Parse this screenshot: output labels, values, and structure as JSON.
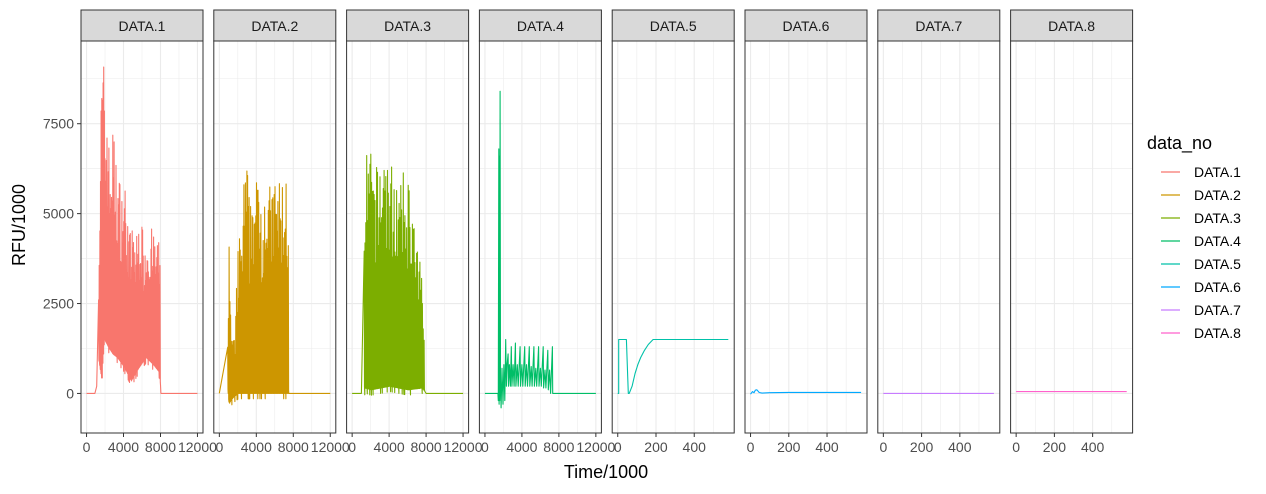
{
  "chart_data": {
    "type": "line",
    "facet": true,
    "xlabel": "Time/1000",
    "ylabel": "RFU/1000",
    "ylim": [
      -1100,
      9800
    ],
    "yticks": [
      0,
      2500,
      5000,
      7500
    ],
    "grid": true,
    "legend": {
      "title": "data_no",
      "position": "right"
    },
    "panels": [
      {
        "name": "DATA.1",
        "color": "#F8766D",
        "xlim": [
          -6000,
          126000
        ],
        "xticks": [
          0,
          40000,
          80000,
          120000
        ],
        "xtick_labels": [
          "0",
          "4000",
          "8000",
          "12000"
        ],
        "mode": "spiky",
        "baseline": [
          [
            0,
            0
          ],
          [
            9000,
            0
          ],
          [
            11000,
            200
          ],
          [
            13000,
            900
          ],
          [
            16000,
            400
          ],
          [
            19000,
            1500
          ],
          [
            23000,
            1300
          ],
          [
            28000,
            1100
          ],
          [
            33000,
            1000
          ],
          [
            40000,
            750
          ],
          [
            48000,
            350
          ],
          [
            56000,
            700
          ],
          [
            64000,
            1000
          ],
          [
            72000,
            800
          ],
          [
            78000,
            600
          ],
          [
            80500,
            0
          ],
          [
            120000,
            0
          ]
        ],
        "upper": [
          [
            13000,
            4000
          ],
          [
            15500,
            7900
          ],
          [
            16200,
            9350
          ],
          [
            19500,
            9350
          ],
          [
            20500,
            7700
          ],
          [
            22000,
            8600
          ],
          [
            25000,
            6500
          ],
          [
            28000,
            7700
          ],
          [
            31000,
            6800
          ],
          [
            34000,
            6300
          ],
          [
            37000,
            5900
          ],
          [
            41000,
            6000
          ],
          [
            44000,
            5400
          ],
          [
            47000,
            4500
          ],
          [
            50000,
            4800
          ],
          [
            54000,
            4400
          ],
          [
            58000,
            5200
          ],
          [
            62000,
            4300
          ],
          [
            66000,
            4700
          ],
          [
            70000,
            4600
          ],
          [
            74000,
            4400
          ],
          [
            78000,
            4250
          ],
          [
            79500,
            4000
          ]
        ],
        "spike_start": 13000,
        "spike_end": 79500,
        "spike_step": 700
      },
      {
        "name": "DATA.2",
        "color": "#CD9600",
        "xlim": [
          -6000,
          126000
        ],
        "xticks": [
          0,
          40000,
          80000,
          120000
        ],
        "xtick_labels": [
          "0",
          "4000",
          "8000",
          "12000"
        ],
        "mode": "spiky",
        "baseline": [
          [
            0,
            0
          ],
          [
            9000,
            0
          ],
          [
            10000,
            -300
          ],
          [
            12000,
            -200
          ],
          [
            15000,
            -100
          ],
          [
            20000,
            0
          ],
          [
            50000,
            0
          ],
          [
            75000,
            0
          ],
          [
            120000,
            0
          ]
        ],
        "upper": [
          [
            9000,
            2000
          ],
          [
            10500,
            5100
          ],
          [
            12000,
            2400
          ],
          [
            14000,
            1600
          ],
          [
            17000,
            1500
          ],
          [
            20000,
            4300
          ],
          [
            24000,
            4500
          ],
          [
            27000,
            6300
          ],
          [
            30000,
            6600
          ],
          [
            33000,
            5200
          ],
          [
            36000,
            6400
          ],
          [
            40000,
            5900
          ],
          [
            43000,
            6800
          ],
          [
            46000,
            5500
          ],
          [
            50000,
            6400
          ],
          [
            54000,
            5800
          ],
          [
            58000,
            5900
          ],
          [
            62000,
            6300
          ],
          [
            66000,
            5900
          ],
          [
            70000,
            6200
          ],
          [
            73000,
            6300
          ],
          [
            75000,
            4200
          ]
        ],
        "spike_start": 9000,
        "spike_end": 75000,
        "spike_step": 800
      },
      {
        "name": "DATA.3",
        "color": "#7CAE00",
        "xlim": [
          -6000,
          126000
        ],
        "xticks": [
          0,
          40000,
          80000,
          120000
        ],
        "xtick_labels": [
          "0",
          "4000",
          "8000",
          "12000"
        ],
        "mode": "spiky",
        "baseline": [
          [
            0,
            0
          ],
          [
            10000,
            0
          ],
          [
            14000,
            150
          ],
          [
            20000,
            100
          ],
          [
            40000,
            200
          ],
          [
            60000,
            100
          ],
          [
            75000,
            150
          ],
          [
            80000,
            0
          ],
          [
            120000,
            0
          ]
        ],
        "upper": [
          [
            13000,
            4200
          ],
          [
            16000,
            6900
          ],
          [
            19000,
            7000
          ],
          [
            22000,
            6500
          ],
          [
            25000,
            6400
          ],
          [
            28000,
            6300
          ],
          [
            32000,
            7000
          ],
          [
            35000,
            7500
          ],
          [
            38000,
            6700
          ],
          [
            41000,
            6200
          ],
          [
            44000,
            6600
          ],
          [
            48000,
            6300
          ],
          [
            51000,
            5500
          ],
          [
            54000,
            6100
          ],
          [
            57000,
            6200
          ],
          [
            60000,
            6100
          ],
          [
            64000,
            6000
          ],
          [
            68000,
            4500
          ],
          [
            71000,
            3900
          ],
          [
            74000,
            3800
          ],
          [
            76000,
            3600
          ],
          [
            78000,
            2500
          ]
        ],
        "spike_start": 13000,
        "spike_end": 78000,
        "spike_step": 900
      },
      {
        "name": "DATA.4",
        "color": "#00BE67",
        "xlim": [
          -6000,
          126000
        ],
        "xticks": [
          0,
          40000,
          80000,
          120000
        ],
        "xtick_labels": [
          "0",
          "4000",
          "8000",
          "12000"
        ],
        "mode": "points",
        "points": [
          [
            0,
            0
          ],
          [
            14000,
            0
          ],
          [
            14500,
            -200
          ],
          [
            15000,
            6800
          ],
          [
            15300,
            -300
          ],
          [
            15700,
            6600
          ],
          [
            16000,
            -200
          ],
          [
            16400,
            8400
          ],
          [
            16800,
            300
          ],
          [
            17500,
            -400
          ],
          [
            18500,
            700
          ],
          [
            19500,
            -300
          ],
          [
            20500,
            800
          ],
          [
            21500,
            -200
          ],
          [
            22500,
            1500
          ],
          [
            23200,
            200
          ],
          [
            24000,
            800
          ],
          [
            25000,
            1100
          ],
          [
            25500,
            200
          ],
          [
            26500,
            800
          ],
          [
            27500,
            200
          ],
          [
            28500,
            1300
          ],
          [
            29200,
            200
          ],
          [
            30500,
            800
          ],
          [
            31500,
            200
          ],
          [
            33000,
            1400
          ],
          [
            33500,
            200
          ],
          [
            35000,
            800
          ],
          [
            36000,
            200
          ],
          [
            38000,
            1300
          ],
          [
            38500,
            200
          ],
          [
            40000,
            800
          ],
          [
            41000,
            200
          ],
          [
            43000,
            1300
          ],
          [
            43500,
            200
          ],
          [
            45000,
            800
          ],
          [
            46000,
            200
          ],
          [
            48000,
            1300
          ],
          [
            48500,
            200
          ],
          [
            50000,
            750
          ],
          [
            51000,
            200
          ],
          [
            53000,
            1300
          ],
          [
            53500,
            200
          ],
          [
            55000,
            700
          ],
          [
            56000,
            200
          ],
          [
            58000,
            1300
          ],
          [
            58500,
            200
          ],
          [
            60000,
            700
          ],
          [
            61000,
            200
          ],
          [
            63000,
            1300
          ],
          [
            63500,
            150
          ],
          [
            65000,
            650
          ],
          [
            66000,
            150
          ],
          [
            68000,
            1200
          ],
          [
            68500,
            100
          ],
          [
            70000,
            650
          ],
          [
            71000,
            0
          ],
          [
            73000,
            1300
          ],
          [
            73300,
            0
          ],
          [
            120000,
            0
          ]
        ]
      },
      {
        "name": "DATA.5",
        "color": "#00C1A9",
        "xlim": [
          -29,
          609
        ],
        "xticks": [
          0,
          200,
          400
        ],
        "xtick_labels": [
          "0",
          "200",
          "400"
        ],
        "mode": "points",
        "points": [
          [
            0,
            0
          ],
          [
            5,
            0
          ],
          [
            5,
            1500
          ],
          [
            10,
            1500
          ],
          [
            30,
            1500
          ],
          [
            45,
            1500
          ],
          [
            55,
            0
          ],
          [
            60,
            0
          ],
          [
            75,
            200
          ],
          [
            90,
            550
          ],
          [
            105,
            800
          ],
          [
            120,
            1000
          ],
          [
            140,
            1200
          ],
          [
            160,
            1360
          ],
          [
            185,
            1500
          ],
          [
            250,
            1500
          ],
          [
            400,
            1500
          ],
          [
            578,
            1500
          ]
        ]
      },
      {
        "name": "DATA.6",
        "color": "#00A9FF",
        "xlim": [
          -29,
          609
        ],
        "xticks": [
          0,
          200,
          400
        ],
        "xtick_labels": [
          "0",
          "200",
          "400"
        ],
        "mode": "points",
        "points": [
          [
            0,
            -20
          ],
          [
            10,
            50
          ],
          [
            18,
            20
          ],
          [
            25,
            90
          ],
          [
            33,
            100
          ],
          [
            45,
            25
          ],
          [
            60,
            10
          ],
          [
            100,
            20
          ],
          [
            200,
            30
          ],
          [
            400,
            30
          ],
          [
            578,
            30
          ]
        ]
      },
      {
        "name": "DATA.7",
        "color": "#C77CFF",
        "xlim": [
          -29,
          609
        ],
        "xticks": [
          0,
          200,
          400
        ],
        "xtick_labels": [
          "0",
          "200",
          "400"
        ],
        "mode": "points",
        "points": [
          [
            0,
            0
          ],
          [
            578,
            0
          ]
        ]
      },
      {
        "name": "DATA.8",
        "color": "#FF61CC",
        "xlim": [
          -29,
          609
        ],
        "xticks": [
          0,
          200,
          400
        ],
        "xtick_labels": [
          "0",
          "200",
          "400"
        ],
        "mode": "points",
        "points": [
          [
            0,
            50
          ],
          [
            578,
            50
          ]
        ]
      }
    ]
  }
}
